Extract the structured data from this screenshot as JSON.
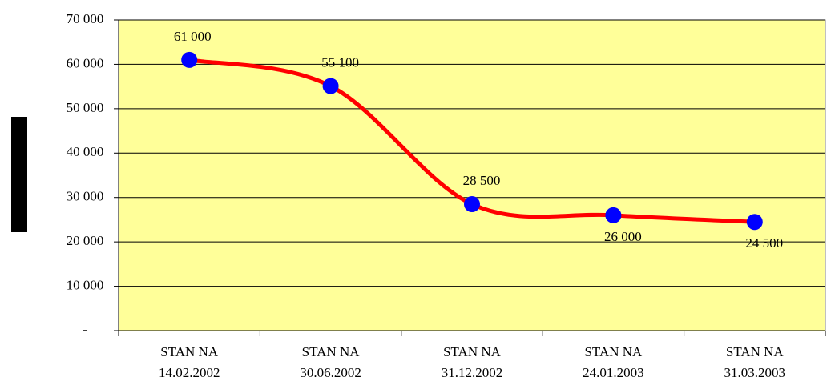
{
  "chart_data": {
    "type": "line",
    "categories": [
      [
        "STAN NA",
        "14.02.2002"
      ],
      [
        "STAN NA",
        "30.06.2002"
      ],
      [
        "STAN NA",
        "31.12.2002"
      ],
      [
        "STAN NA",
        "24.01.2003"
      ],
      [
        "STAN NA",
        "31.03.2003"
      ]
    ],
    "values": [
      61000,
      55100,
      28500,
      26000,
      24500
    ],
    "value_labels": [
      "61 000",
      "55 100",
      "28 500",
      "26 000",
      "24 500"
    ],
    "line_color": "#ff0000",
    "marker_color": "#0000ff",
    "plot_background": "#ffff99",
    "ylim": [
      0,
      70000
    ],
    "yticks": [
      {
        "value": 0,
        "label": "-"
      },
      {
        "value": 10000,
        "label": "10 000"
      },
      {
        "value": 20000,
        "label": "20 000"
      },
      {
        "value": 30000,
        "label": "30 000"
      },
      {
        "value": 40000,
        "label": "40 000"
      },
      {
        "value": 50000,
        "label": "50 000"
      },
      {
        "value": 60000,
        "label": "60 000"
      },
      {
        "value": 70000,
        "label": "70 000"
      }
    ],
    "grid": true
  }
}
